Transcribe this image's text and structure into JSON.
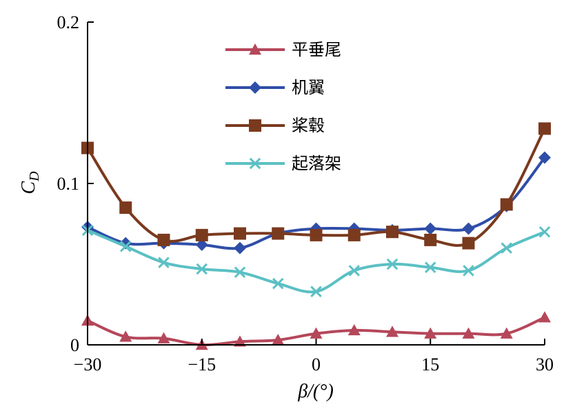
{
  "chart_data": {
    "type": "line",
    "title": "",
    "xlabel": "β/(°)",
    "ylabel": "C_D",
    "xlim": [
      -30,
      30
    ],
    "ylim": [
      0,
      0.2
    ],
    "xticks": [
      -30,
      -15,
      0,
      15,
      30
    ],
    "xtick_labels": [
      "−30",
      "−15",
      "0",
      "15",
      "30"
    ],
    "yticks": [
      0,
      0.1,
      0.2
    ],
    "ytick_labels": [
      "0",
      "0.1",
      "0.2"
    ],
    "grid": false,
    "legend_position": "top-center",
    "x": [
      -30,
      -25,
      -20,
      -15,
      -10,
      -5,
      0,
      5,
      10,
      15,
      20,
      25,
      30
    ],
    "series": [
      {
        "name": "平垂尾",
        "color": "#b5475a",
        "marker": "triangle",
        "values": [
          0.015,
          0.005,
          0.004,
          0.0,
          0.002,
          0.003,
          0.007,
          0.009,
          0.008,
          0.007,
          0.007,
          0.007,
          0.017
        ]
      },
      {
        "name": "机翼",
        "color": "#2f4ea8",
        "marker": "diamond",
        "values": [
          0.073,
          0.063,
          0.063,
          0.062,
          0.06,
          0.069,
          0.072,
          0.072,
          0.071,
          0.072,
          0.072,
          0.086,
          0.116
        ]
      },
      {
        "name": "桨毂",
        "color": "#7a3a1e",
        "marker": "square",
        "values": [
          0.122,
          0.085,
          0.065,
          0.068,
          0.069,
          0.069,
          0.068,
          0.068,
          0.07,
          0.065,
          0.063,
          0.087,
          0.134
        ]
      },
      {
        "name": "起落架",
        "color": "#5bc0c4",
        "marker": "x",
        "values": [
          0.071,
          0.061,
          0.051,
          0.047,
          0.045,
          0.038,
          0.033,
          0.046,
          0.05,
          0.048,
          0.046,
          0.06,
          0.07
        ]
      }
    ]
  }
}
